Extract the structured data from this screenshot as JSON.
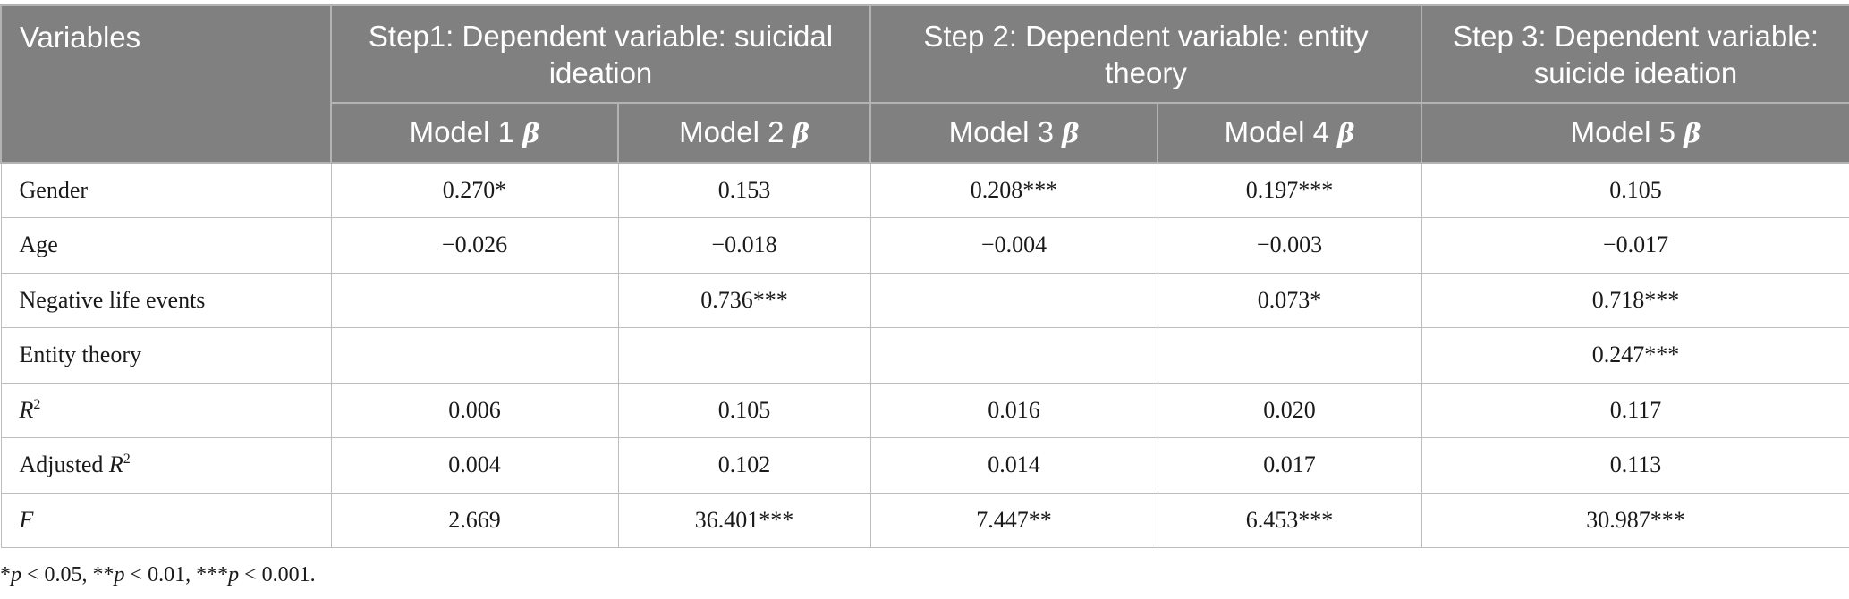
{
  "table": {
    "header": {
      "variables": "Variables",
      "step1": "Step1: Dependent variable: suicidal ideation",
      "step2": "Step 2: Dependent variable: entity theory",
      "step3": "Step 3: Dependent variable: suicide ideation",
      "models": [
        {
          "name": "Model 1",
          "symbol": "β"
        },
        {
          "name": "Model 2",
          "symbol": "β"
        },
        {
          "name": "Model 3",
          "symbol": "β"
        },
        {
          "name": "Model 4",
          "symbol": "β"
        },
        {
          "name": "Model 5",
          "symbol": "β"
        }
      ]
    },
    "rows": [
      {
        "label": "Gender",
        "values": [
          "0.270*",
          "0.153",
          "0.208***",
          "0.197***",
          "0.105"
        ]
      },
      {
        "label": "Age",
        "values": [
          "−0.026",
          "−0.018",
          "−0.004",
          "−0.003",
          "−0.017"
        ]
      },
      {
        "label": "Negative life events",
        "values": [
          "",
          "0.736***",
          "",
          "0.073*",
          "0.718***"
        ]
      },
      {
        "label": "Entity theory",
        "values": [
          "",
          "",
          "",
          "",
          "0.247***"
        ]
      },
      {
        "label_prefix": "",
        "label_italic": "R",
        "label_sup": "2",
        "values": [
          "0.006",
          "0.105",
          "0.016",
          "0.020",
          "0.117"
        ]
      },
      {
        "label_prefix": "Adjusted ",
        "label_italic": "R",
        "label_sup": "2",
        "values": [
          "0.004",
          "0.102",
          "0.014",
          "0.017",
          "0.113"
        ]
      },
      {
        "label_prefix": "",
        "label_italic": "F",
        "label_sup": "",
        "values": [
          "2.669",
          "36.401***",
          "7.447**",
          "6.453***",
          "30.987***"
        ]
      }
    ]
  },
  "footnote": {
    "s1": "*",
    "p1": "p",
    "t1": " < 0.05, **",
    "p2": "p",
    "t2": " < 0.01, ***",
    "p3": "p",
    "t3": " < 0.001."
  },
  "colors": {
    "header_bg": "#808080",
    "header_text": "#ffffff",
    "grid": "#bdbdbd"
  }
}
